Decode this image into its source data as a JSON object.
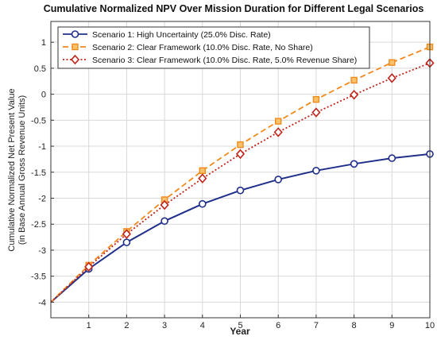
{
  "chart_data": {
    "type": "line",
    "title": "Cumulative Normalized NPV Over Mission Duration for Different Legal Scenarios",
    "xlabel": "Year",
    "ylabel": "Cumulative Normalized Net Present Value",
    "ylabel2": "(in Base Annual Gross Revenue Units)",
    "xlim": [
      0,
      10
    ],
    "ylim": [
      -4.3,
      1.4
    ],
    "xticks": [
      1,
      2,
      3,
      4,
      5,
      6,
      7,
      8,
      9,
      10
    ],
    "yticks": [
      -4,
      -3.5,
      -3,
      -2.5,
      -2,
      -1.5,
      -1,
      -0.5,
      0,
      0.5,
      1
    ],
    "grid": true,
    "legend_position": "top-left",
    "x": [
      0,
      1,
      2,
      3,
      4,
      5,
      6,
      7,
      8,
      9,
      10
    ],
    "series": [
      {
        "name": "Scenario 1: High Uncertainty (25.0% Disc. Rate)",
        "color": "#1f2f8a",
        "line_style": "solid",
        "marker": "circle",
        "values": [
          -4.0,
          -3.36,
          -2.85,
          -2.44,
          -2.11,
          -1.85,
          -1.64,
          -1.47,
          -1.34,
          -1.23,
          -1.15
        ]
      },
      {
        "name": "Scenario 2: Clear Framework (10.0% Disc. Rate, No Share)",
        "color": "#f08a1c",
        "line_style": "dashed",
        "marker": "square",
        "values": [
          -4.0,
          -3.29,
          -2.64,
          -2.03,
          -1.47,
          -0.97,
          -0.52,
          -0.1,
          0.27,
          0.61,
          0.91
        ]
      },
      {
        "name": "Scenario 3: Clear Framework (10.0% Disc. Rate, 5.0% Revenue Share)",
        "color": "#c0231a",
        "line_style": "dotted",
        "marker": "diamond",
        "values": [
          -4.0,
          -3.32,
          -2.69,
          -2.13,
          -1.62,
          -1.15,
          -0.73,
          -0.35,
          -0.01,
          0.31,
          0.6
        ]
      }
    ]
  }
}
